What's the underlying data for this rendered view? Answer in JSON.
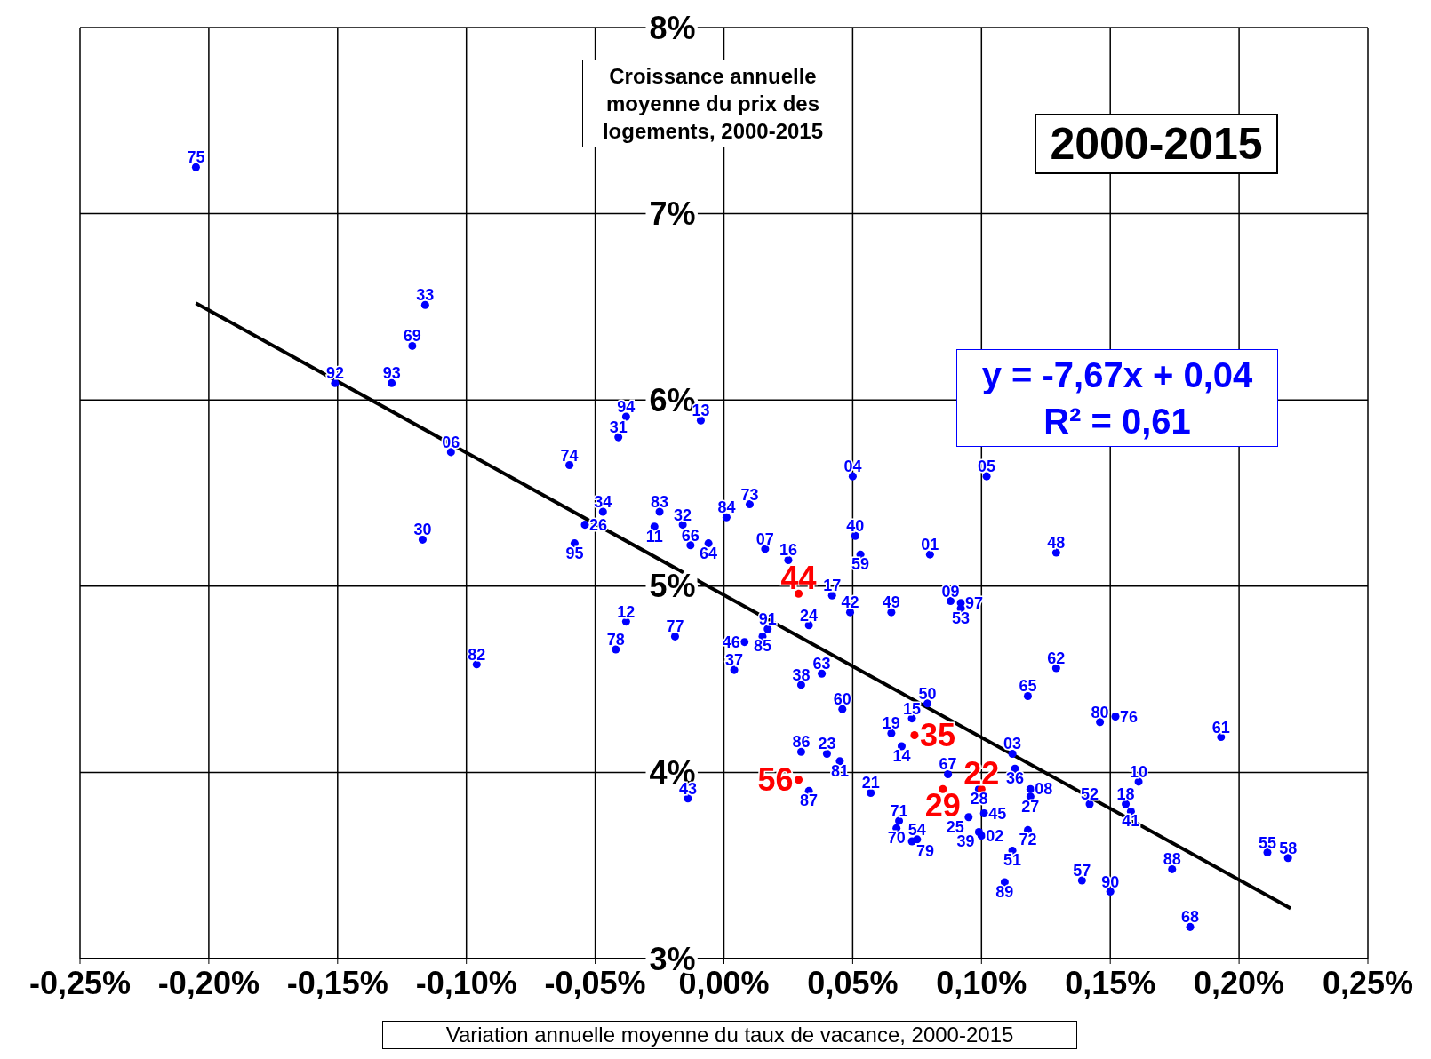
{
  "chart_data": {
    "type": "scatter",
    "title": "2000-2015",
    "xlabel": "Variation annuelle moyenne du taux de vacance, 2000-2015",
    "ylabel": "Croissance annuelle moyenne du prix des logements, 2000-2015",
    "xlim": [
      -0.25,
      0.25
    ],
    "xticks": [
      {
        "value": -0.25,
        "label": "-0,25%"
      },
      {
        "value": -0.2,
        "label": "-0,20%"
      },
      {
        "value": -0.15,
        "label": "-0,15%"
      },
      {
        "value": -0.1,
        "label": "-0,10%"
      },
      {
        "value": -0.05,
        "label": "-0,05%"
      },
      {
        "value": 0,
        "label": "0,00%"
      },
      {
        "value": 0.05,
        "label": "0,05%"
      },
      {
        "value": 0.1,
        "label": "0,10%"
      },
      {
        "value": 0.15,
        "label": "0,15%"
      },
      {
        "value": 0.2,
        "label": "0,20%"
      },
      {
        "value": 0.25,
        "label": "0,25%"
      }
    ],
    "ylim": [
      3,
      8
    ],
    "yticks": [
      {
        "value": 3,
        "label": "3%"
      },
      {
        "value": 4,
        "label": "4%"
      },
      {
        "value": 5,
        "label": "5%"
      },
      {
        "value": 6,
        "label": "6%"
      },
      {
        "value": 7,
        "label": "7%"
      },
      {
        "value": 8,
        "label": "8%"
      }
    ],
    "grid": true,
    "marker": "circle",
    "series": [
      {
        "color": "#0000ff",
        "x": [
          -0.205,
          -0.116,
          -0.121,
          -0.151,
          -0.129,
          -0.106,
          -0.117,
          -0.096,
          -0.06,
          -0.047,
          -0.054,
          -0.058,
          -0.038,
          -0.041,
          -0.009,
          -0.038,
          -0.042,
          -0.019,
          -0.025,
          -0.027,
          -0.016,
          -0.013,
          -0.006,
          0.001,
          0.01,
          0.016,
          0.025,
          -0.014,
          0.05,
          0.102,
          0.051,
          0.053,
          0.08,
          0.129,
          0.042,
          0.049,
          0.065,
          0.088,
          0.092,
          0.092,
          0.033,
          0.017,
          0.015,
          0.008,
          0.004,
          0.038,
          0.03,
          0.046,
          0.129,
          0.118,
          0.079,
          0.073,
          0.065,
          0.069,
          0.146,
          0.152,
          0.193,
          0.03,
          0.04,
          0.045,
          0.033,
          0.057,
          0.087,
          0.099,
          0.112,
          0.113,
          0.119,
          0.119,
          0.161,
          0.142,
          0.156,
          0.158,
          0.095,
          0.101,
          0.099,
          0.1,
          0.118,
          0.112,
          0.068,
          0.067,
          0.073,
          0.075,
          0.109,
          0.139,
          0.15,
          0.174,
          0.181,
          0.211,
          0.219
        ],
        "values": [
          7.25,
          6.51,
          6.29,
          6.09,
          6.09,
          5.72,
          5.25,
          4.58,
          5.65,
          5.4,
          5.33,
          5.23,
          5.91,
          5.8,
          5.89,
          4.81,
          4.66,
          4.73,
          5.4,
          5.32,
          5.33,
          5.22,
          5.23,
          5.37,
          5.44,
          5.2,
          5.14,
          3.86,
          5.59,
          5.59,
          5.27,
          5.17,
          5.17,
          5.18,
          4.95,
          4.86,
          4.86,
          4.92,
          4.91,
          4.88,
          4.79,
          4.77,
          4.73,
          4.7,
          4.55,
          4.53,
          4.47,
          4.34,
          4.56,
          4.41,
          4.37,
          4.29,
          4.21,
          4.14,
          4.27,
          4.3,
          4.19,
          4.11,
          4.1,
          4.06,
          3.9,
          3.89,
          3.99,
          3.91,
          4.1,
          4.02,
          3.91,
          3.87,
          3.95,
          3.83,
          3.83,
          3.79,
          3.76,
          3.78,
          3.68,
          3.66,
          3.69,
          3.58,
          3.74,
          3.7,
          3.63,
          3.64,
          3.41,
          3.42,
          3.36,
          3.48,
          3.17,
          3.57,
          3.54
        ]
      },
      {
        "color": "#ff0000",
        "x": [
          0.029,
          0.074,
          0.029,
          0.085,
          0.1
        ],
        "values": [
          4.96,
          4.2,
          3.96,
          3.91,
          3.91
        ]
      },
      {
        "type": "line",
        "color": "#000000",
        "line_style": "solid",
        "marker": "none",
        "x": [
          -0.205,
          0.22
        ],
        "values": [
          6.52,
          3.27
        ]
      }
    ],
    "annotations": [
      "y = -7,67x + 0,04",
      "R² = 0,61",
      {
        "text": "75",
        "x": -0.205,
        "y": 7.25
      },
      {
        "text": "33",
        "x": -0.116,
        "y": 6.51
      },
      {
        "text": "69",
        "x": -0.121,
        "y": 6.29
      },
      {
        "text": "92",
        "x": -0.151,
        "y": 6.09
      },
      {
        "text": "93",
        "x": -0.129,
        "y": 6.09
      },
      {
        "text": "06",
        "x": -0.106,
        "y": 5.72
      },
      {
        "text": "30",
        "x": -0.117,
        "y": 5.25
      },
      {
        "text": "82",
        "x": -0.096,
        "y": 4.58
      },
      {
        "text": "74",
        "x": -0.06,
        "y": 5.65
      },
      {
        "text": "34",
        "x": -0.047,
        "y": 5.4
      },
      {
        "text": "26",
        "x": -0.054,
        "y": 5.33
      },
      {
        "text": "95",
        "x": -0.058,
        "y": 5.23
      },
      {
        "text": "94",
        "x": -0.038,
        "y": 5.91
      },
      {
        "text": "31",
        "x": -0.041,
        "y": 5.8
      },
      {
        "text": "13",
        "x": -0.009,
        "y": 5.89
      },
      {
        "text": "12",
        "x": -0.038,
        "y": 4.81
      },
      {
        "text": "78",
        "x": -0.042,
        "y": 4.66
      },
      {
        "text": "77",
        "x": -0.019,
        "y": 4.73
      },
      {
        "text": "83",
        "x": -0.025,
        "y": 5.4
      },
      {
        "text": "11",
        "x": -0.027,
        "y": 5.32
      },
      {
        "text": "32",
        "x": -0.016,
        "y": 5.33
      },
      {
        "text": "66",
        "x": -0.013,
        "y": 5.22
      },
      {
        "text": "64",
        "x": -0.006,
        "y": 5.23
      },
      {
        "text": "84",
        "x": 0.001,
        "y": 5.37
      },
      {
        "text": "73",
        "x": 0.01,
        "y": 5.44
      },
      {
        "text": "07",
        "x": 0.016,
        "y": 5.2
      },
      {
        "text": "16",
        "x": 0.025,
        "y": 5.14
      },
      {
        "text": "43",
        "x": -0.014,
        "y": 3.86
      },
      {
        "text": "04",
        "x": 0.05,
        "y": 5.59
      },
      {
        "text": "05",
        "x": 0.102,
        "y": 5.59
      },
      {
        "text": "40",
        "x": 0.051,
        "y": 5.27
      },
      {
        "text": "59",
        "x": 0.053,
        "y": 5.17
      },
      {
        "text": "01",
        "x": 0.08,
        "y": 5.17
      },
      {
        "text": "48",
        "x": 0.129,
        "y": 5.18
      },
      {
        "text": "17",
        "x": 0.042,
        "y": 4.95
      },
      {
        "text": "42",
        "x": 0.049,
        "y": 4.86
      },
      {
        "text": "49",
        "x": 0.065,
        "y": 4.86
      },
      {
        "text": "09",
        "x": 0.088,
        "y": 4.92
      },
      {
        "text": "97",
        "x": 0.092,
        "y": 4.91
      },
      {
        "text": "53",
        "x": 0.092,
        "y": 4.88
      },
      {
        "text": "24",
        "x": 0.033,
        "y": 4.79
      },
      {
        "text": "91",
        "x": 0.017,
        "y": 4.77
      },
      {
        "text": "85",
        "x": 0.015,
        "y": 4.73
      },
      {
        "text": "46",
        "x": 0.008,
        "y": 4.7
      },
      {
        "text": "37",
        "x": 0.004,
        "y": 4.55
      },
      {
        "text": "63",
        "x": 0.038,
        "y": 4.53
      },
      {
        "text": "38",
        "x": 0.03,
        "y": 4.47
      },
      {
        "text": "60",
        "x": 0.046,
        "y": 4.34
      },
      {
        "text": "62",
        "x": 0.129,
        "y": 4.56
      },
      {
        "text": "65",
        "x": 0.118,
        "y": 4.41
      },
      {
        "text": "50",
        "x": 0.079,
        "y": 4.37
      },
      {
        "text": "15",
        "x": 0.073,
        "y": 4.29
      },
      {
        "text": "19",
        "x": 0.065,
        "y": 4.21
      },
      {
        "text": "14",
        "x": 0.069,
        "y": 4.14
      },
      {
        "text": "80",
        "x": 0.146,
        "y": 4.27
      },
      {
        "text": "76",
        "x": 0.152,
        "y": 4.3
      },
      {
        "text": "61",
        "x": 0.193,
        "y": 4.19
      },
      {
        "text": "86",
        "x": 0.03,
        "y": 4.11
      },
      {
        "text": "23",
        "x": 0.04,
        "y": 4.1
      },
      {
        "text": "81",
        "x": 0.045,
        "y": 4.06
      },
      {
        "text": "87",
        "x": 0.033,
        "y": 3.9
      },
      {
        "text": "21",
        "x": 0.057,
        "y": 3.89
      },
      {
        "text": "67",
        "x": 0.087,
        "y": 3.99
      },
      {
        "text": "28",
        "x": 0.099,
        "y": 3.91
      },
      {
        "text": "03",
        "x": 0.112,
        "y": 4.1
      },
      {
        "text": "36",
        "x": 0.113,
        "y": 4.02
      },
      {
        "text": "08",
        "x": 0.119,
        "y": 3.91
      },
      {
        "text": "27",
        "x": 0.119,
        "y": 3.87
      },
      {
        "text": "10",
        "x": 0.161,
        "y": 3.95
      },
      {
        "text": "52",
        "x": 0.142,
        "y": 3.83
      },
      {
        "text": "18",
        "x": 0.156,
        "y": 3.83
      },
      {
        "text": "41",
        "x": 0.158,
        "y": 3.79
      },
      {
        "text": "25",
        "x": 0.095,
        "y": 3.76
      },
      {
        "text": "45",
        "x": 0.101,
        "y": 3.78
      },
      {
        "text": "39",
        "x": 0.099,
        "y": 3.68
      },
      {
        "text": "02",
        "x": 0.1,
        "y": 3.66
      },
      {
        "text": "72",
        "x": 0.118,
        "y": 3.69
      },
      {
        "text": "51",
        "x": 0.112,
        "y": 3.58
      },
      {
        "text": "71",
        "x": 0.068,
        "y": 3.74
      },
      {
        "text": "70",
        "x": 0.067,
        "y": 3.7
      },
      {
        "text": "79",
        "x": 0.073,
        "y": 3.63
      },
      {
        "text": "54",
        "x": 0.075,
        "y": 3.64
      },
      {
        "text": "89",
        "x": 0.109,
        "y": 3.41
      },
      {
        "text": "57",
        "x": 0.139,
        "y": 3.42
      },
      {
        "text": "90",
        "x": 0.15,
        "y": 3.36
      },
      {
        "text": "88",
        "x": 0.174,
        "y": 3.48
      },
      {
        "text": "68",
        "x": 0.181,
        "y": 3.17
      },
      {
        "text": "55",
        "x": 0.211,
        "y": 3.57
      },
      {
        "text": "58",
        "x": 0.219,
        "y": 3.54
      },
      {
        "text": "44",
        "x": 0.029,
        "y": 4.96
      },
      {
        "text": "35",
        "x": 0.074,
        "y": 4.2
      },
      {
        "text": "56",
        "x": 0.029,
        "y": 3.96
      },
      {
        "text": "29",
        "x": 0.085,
        "y": 3.91
      },
      {
        "text": "22",
        "x": 0.1,
        "y": 3.91
      }
    ]
  }
}
